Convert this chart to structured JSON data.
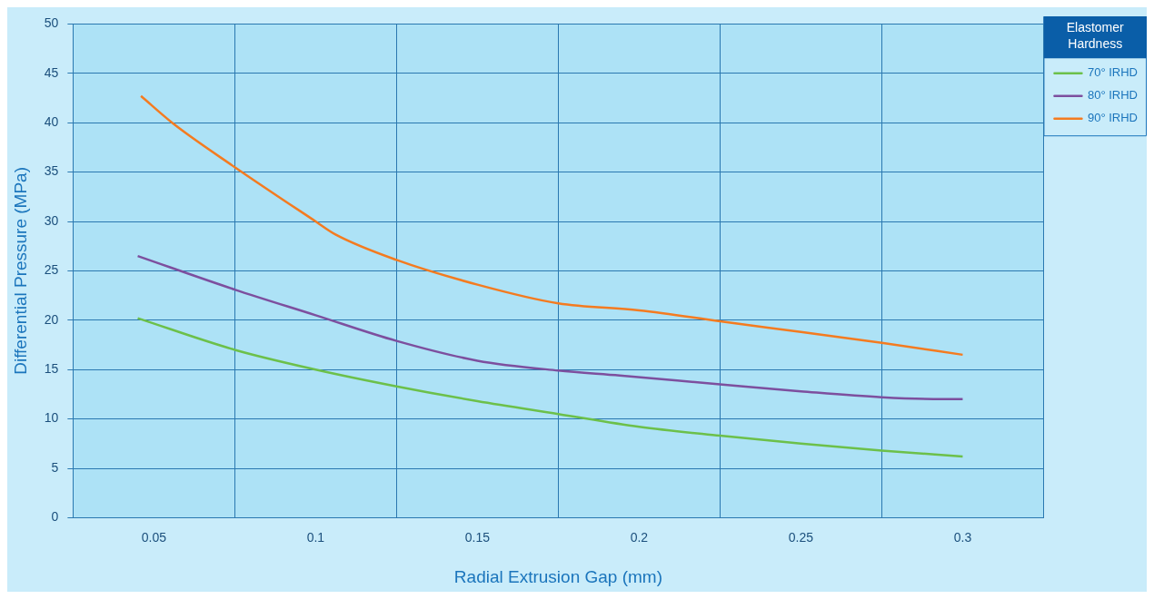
{
  "chart_data": {
    "type": "line",
    "xlabel": "Radial Extrusion Gap (mm)",
    "ylabel": "Differential Pressure (MPa)",
    "legend_title": "Elastomer Hardness",
    "legend": "top right",
    "grid": true,
    "marker": "none",
    "line_style": "solid",
    "xlim": [
      0.025,
      0.325
    ],
    "xticks": [
      {
        "value": 0.025,
        "label": null
      },
      0.05,
      {
        "value": 0.075,
        "label": null
      },
      0.1,
      {
        "value": 0.125,
        "label": null
      },
      0.15,
      {
        "value": 0.175,
        "label": null
      },
      0.2,
      {
        "value": 0.225,
        "label": null
      },
      0.25,
      {
        "value": 0.275,
        "label": null
      },
      0.3,
      {
        "value": 0.325,
        "label": null
      }
    ],
    "ylim": [
      0,
      50
    ],
    "yticks": [
      0,
      5,
      10,
      15,
      20,
      25,
      30,
      35,
      40,
      45,
      50
    ],
    "series": [
      {
        "name": "70° IRHD",
        "color": "#6cc04a",
        "x": [
          0.045,
          0.075,
          0.1,
          0.125,
          0.15,
          0.175,
          0.2,
          0.225,
          0.25,
          0.275,
          0.3
        ],
        "values": [
          20.2,
          17.0,
          15.0,
          13.3,
          11.8,
          10.5,
          9.2,
          8.3,
          7.5,
          6.8,
          6.2
        ]
      },
      {
        "name": "80° IRHD",
        "color": "#7d4f9e",
        "x": [
          0.045,
          0.075,
          0.1,
          0.125,
          0.15,
          0.175,
          0.194,
          0.225,
          0.25,
          0.275,
          0.294,
          0.3
        ],
        "values": [
          26.5,
          23.1,
          20.5,
          17.9,
          15.9,
          14.9,
          14.4,
          13.5,
          12.8,
          12.2,
          12.0,
          12.0
        ]
      },
      {
        "name": "90° IRHD",
        "color": "#f47b20",
        "x": [
          0.046,
          0.056,
          0.075,
          0.1,
          0.106,
          0.125,
          0.15,
          0.175,
          0.2,
          0.225,
          0.25,
          0.275,
          0.3
        ],
        "values": [
          42.7,
          39.9,
          35.5,
          30.0,
          28.7,
          26.1,
          23.6,
          21.7,
          21.0,
          19.9,
          18.8,
          17.7,
          16.5
        ]
      }
    ]
  }
}
